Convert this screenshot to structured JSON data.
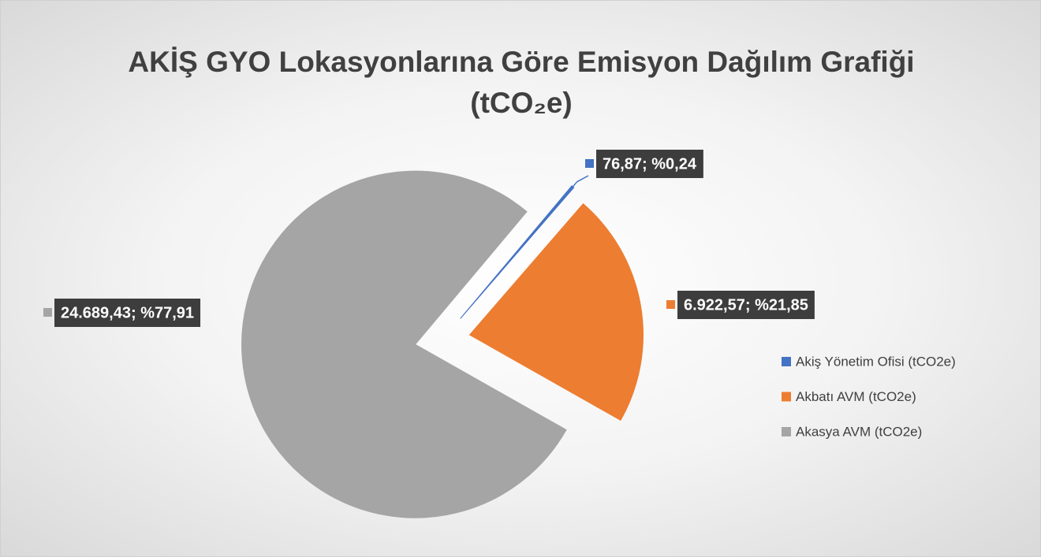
{
  "chart_data": {
    "type": "pie",
    "title": "AKİŞ GYO Lokasyonlarına Göre Emisyon Dağılım Grafiği (tCO₂e)",
    "categories": [
      "Akiş Yönetim Ofisi (tCO2e)",
      "Akbatı AVM (tCO2e)",
      "Akasya AVM (tCO2e)"
    ],
    "values": [
      76.87,
      6922.57,
      24689.43
    ],
    "value_labels": [
      "76,87; %0,24",
      "6.922,57; %21,85",
      "24.689,43; %77,91"
    ],
    "colors": [
      "#4472c4",
      "#ed7d31",
      "#a5a5a5"
    ],
    "legend": "right"
  }
}
